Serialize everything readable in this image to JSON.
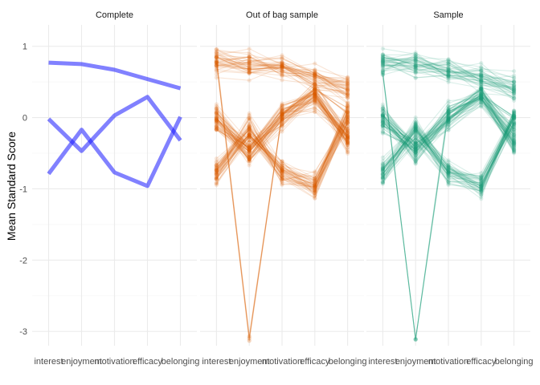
{
  "chart_data": {
    "type": "line",
    "title": "",
    "ylabel": "Mean Standard Score",
    "xlabel": "",
    "categories": [
      "interest",
      "enjoyment",
      "motivation",
      "efficacy",
      "belonging"
    ],
    "ylim": [
      -3.2,
      1.3
    ],
    "yticks": [
      1,
      0,
      -1,
      -2,
      -3
    ],
    "yticks_text": [
      "1",
      "0",
      "-1",
      "-2",
      "-3"
    ],
    "grid": true,
    "legend": "none",
    "panels": [
      {
        "strip": "Complete",
        "color": "#1a1aff",
        "series": [
          {
            "values": [
              0.77,
              0.75,
              0.67,
              0.54,
              0.41
            ]
          },
          {
            "values": [
              -0.02,
              -0.47,
              0.03,
              0.29,
              -0.32
            ]
          },
          {
            "values": [
              -0.79,
              -0.17,
              -0.77,
              -0.96,
              0.01
            ]
          }
        ]
      },
      {
        "strip": "Out of bag sample",
        "color": "#d95f02",
        "series": [
          {
            "values": [
              0.78,
              0.75,
              0.67,
              0.54,
              0.41
            ]
          },
          {
            "values": [
              -0.02,
              -0.47,
              0.03,
              0.29,
              -0.32
            ]
          },
          {
            "values": [
              -0.79,
              -0.17,
              -0.77,
              -0.96,
              0.01
            ]
          },
          {
            "values": [
              0.8,
              -3.08,
              0.05,
              0.4,
              0.1
            ]
          }
        ]
      },
      {
        "strip": "Sample",
        "color": "#1b9e77",
        "series": [
          {
            "values": [
              0.78,
              0.75,
              0.67,
              0.54,
              0.41
            ]
          },
          {
            "values": [
              -0.02,
              -0.47,
              0.03,
              0.29,
              -0.32
            ]
          },
          {
            "values": [
              -0.79,
              -0.17,
              -0.77,
              -0.96,
              0.01
            ]
          },
          {
            "values": [
              0.6,
              -3.1,
              0.1,
              0.3,
              0.0
            ]
          }
        ]
      }
    ]
  }
}
